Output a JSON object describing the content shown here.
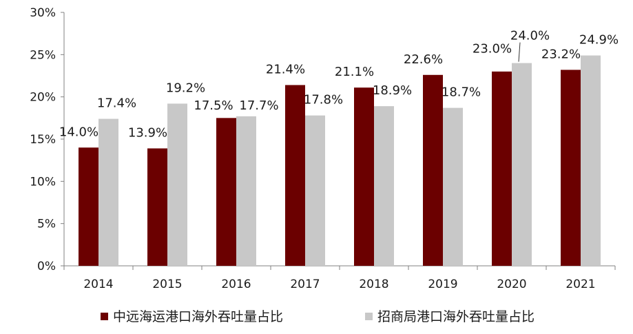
{
  "chart_data": {
    "type": "bar",
    "categories": [
      "2014",
      "2015",
      "2016",
      "2017",
      "2018",
      "2019",
      "2020",
      "2021"
    ],
    "series": [
      {
        "name": "中远海运港口海外吞吐量占比",
        "color": "#6b0000",
        "values": [
          14.0,
          13.9,
          17.5,
          21.4,
          21.1,
          22.6,
          23.0,
          23.2
        ],
        "labels": [
          "14.0%",
          "13.9%",
          "17.5%",
          "21.4%",
          "21.1%",
          "22.6%",
          "23.0%",
          "23.2%"
        ]
      },
      {
        "name": "招商局港口海外吞吐量占比",
        "color": "#c8c8c8",
        "values": [
          17.4,
          19.2,
          17.7,
          17.8,
          18.9,
          18.7,
          24.0,
          24.9
        ],
        "labels": [
          "17.4%",
          "19.2%",
          "17.7%",
          "17.8%",
          "18.9%",
          "18.7%",
          "24.0%",
          "24.9%"
        ]
      }
    ],
    "y_ticks": [
      "0%",
      "5%",
      "10%",
      "15%",
      "20%",
      "25%",
      "30%"
    ],
    "ylim": [
      0,
      30
    ],
    "legend_position": "bottom",
    "grid": false
  }
}
